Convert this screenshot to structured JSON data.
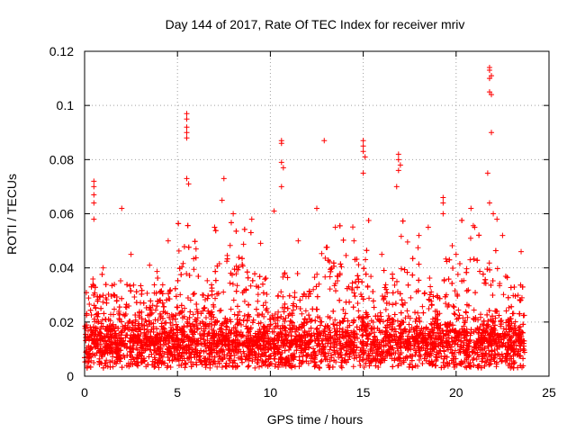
{
  "chart_data": {
    "type": "scatter",
    "title": "Day 144 of 2017, Rate Of TEC Index for receiver mriv",
    "xlabel": "GPS time / hours",
    "ylabel": "ROTI / TECUs",
    "xlim": [
      0,
      25
    ],
    "ylim": [
      0,
      0.12
    ],
    "xticks": [
      0,
      5,
      10,
      15,
      20,
      25
    ],
    "yticks": [
      0,
      0.02,
      0.04,
      0.06,
      0.08,
      0.1,
      0.12
    ],
    "xtick_labels": [
      "0",
      "5",
      "10",
      "15",
      "20",
      "25"
    ],
    "ytick_labels": [
      "0",
      "0.02",
      "0.04",
      "0.06",
      "0.08",
      "0.1",
      "0.12"
    ],
    "grid": true,
    "marker": "+",
    "marker_color": "#ff0000",
    "series": [
      {
        "name": "ROTI",
        "points": [
          [
            0.5,
            0.072
          ],
          [
            0.5,
            0.07
          ],
          [
            0.5,
            0.067
          ],
          [
            0.5,
            0.064
          ],
          [
            0.5,
            0.058
          ],
          [
            2.0,
            0.062
          ],
          [
            5.5,
            0.097
          ],
          [
            5.5,
            0.095
          ],
          [
            5.5,
            0.092
          ],
          [
            5.5,
            0.09
          ],
          [
            5.5,
            0.088
          ],
          [
            5.5,
            0.073
          ],
          [
            5.6,
            0.071
          ],
          [
            7.5,
            0.073
          ],
          [
            7.4,
            0.065
          ],
          [
            10.6,
            0.087
          ],
          [
            10.6,
            0.086
          ],
          [
            10.6,
            0.079
          ],
          [
            10.7,
            0.077
          ],
          [
            10.6,
            0.07
          ],
          [
            12.9,
            0.087
          ],
          [
            15.0,
            0.087
          ],
          [
            15.0,
            0.085
          ],
          [
            15.0,
            0.083
          ],
          [
            15.1,
            0.081
          ],
          [
            15.0,
            0.075
          ],
          [
            16.9,
            0.082
          ],
          [
            16.9,
            0.08
          ],
          [
            17.0,
            0.078
          ],
          [
            16.9,
            0.076
          ],
          [
            16.8,
            0.07
          ],
          [
            19.3,
            0.066
          ],
          [
            19.3,
            0.064
          ],
          [
            19.3,
            0.06
          ],
          [
            21.8,
            0.114
          ],
          [
            21.8,
            0.113
          ],
          [
            21.9,
            0.111
          ],
          [
            21.8,
            0.11
          ],
          [
            21.8,
            0.105
          ],
          [
            21.9,
            0.104
          ],
          [
            21.9,
            0.09
          ],
          [
            21.7,
            0.075
          ],
          [
            21.8,
            0.064
          ],
          [
            20.8,
            0.062
          ],
          [
            22.0,
            0.06
          ],
          [
            22.2,
            0.058
          ],
          [
            1.0,
            0.04
          ],
          [
            2.5,
            0.045
          ],
          [
            3.5,
            0.041
          ],
          [
            4.5,
            0.05
          ],
          [
            6.0,
            0.047
          ],
          [
            7.0,
            0.055
          ],
          [
            8.0,
            0.06
          ],
          [
            9.0,
            0.058
          ],
          [
            10.2,
            0.061
          ],
          [
            11.5,
            0.05
          ],
          [
            12.5,
            0.062
          ],
          [
            13.5,
            0.055
          ],
          [
            14.5,
            0.05
          ],
          [
            16.0,
            0.045
          ],
          [
            18.0,
            0.052
          ],
          [
            18.5,
            0.055
          ],
          [
            20.0,
            0.045
          ],
          [
            21.0,
            0.055
          ],
          [
            22.5,
            0.052
          ],
          [
            23.5,
            0.046
          ]
        ]
      }
    ],
    "dense_band": {
      "x_range": [
        0,
        23.7
      ],
      "base_min": 0.003,
      "base_mean": 0.016,
      "active_windows": [
        [
          5.0,
          6.2
        ],
        [
          7.0,
          9.5
        ],
        [
          12.7,
          15.5
        ],
        [
          16.5,
          18.0
        ],
        [
          19.0,
          22.5
        ]
      ]
    }
  }
}
